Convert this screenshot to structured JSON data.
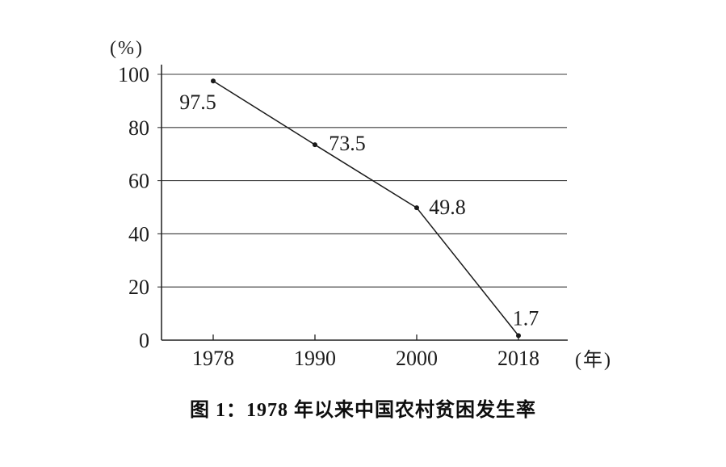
{
  "chart_data": {
    "type": "line",
    "title": "图 1：1978 年以来中国农村贫困发生率",
    "categories": [
      "1978",
      "1990",
      "2000",
      "2018"
    ],
    "values": [
      97.5,
      73.5,
      49.8,
      1.7
    ],
    "data_labels": [
      "97.5",
      "73.5",
      "49.8",
      "1.7"
    ],
    "xlabel": "(年)",
    "ylabel": "(%)",
    "ylim": [
      0,
      100
    ],
    "yticks": [
      0,
      20,
      40,
      60,
      80,
      100
    ],
    "grid": true,
    "legend": "none",
    "marker": "dot",
    "line_color": "#1a1a1a",
    "grid_color": "#3a3a3a",
    "axis_color": "#1f1f1f",
    "text_color": "#1c1c1c"
  }
}
